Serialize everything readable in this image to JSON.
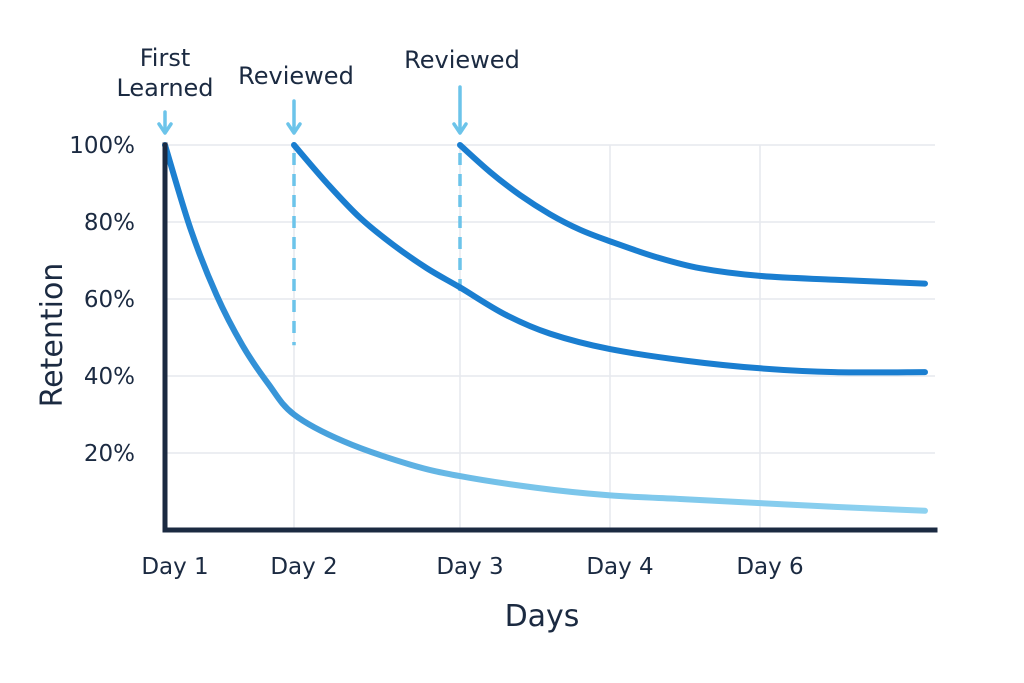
{
  "chart_data": {
    "type": "line",
    "title": "",
    "xlabel": "Days",
    "ylabel": "Retention",
    "x_tick_labels": [
      {
        "label": "Day 1",
        "x": 1
      },
      {
        "label": "Day 2",
        "x": 2
      },
      {
        "label": "Day 3",
        "x": 3
      },
      {
        "label": "Day 4",
        "x": 4
      },
      {
        "label": "Day 6",
        "x": 5
      }
    ],
    "y_ticks": [
      20,
      40,
      60,
      80,
      100
    ],
    "y_tick_labels": [
      "20%",
      "40%",
      "60%",
      "80%",
      "100%"
    ],
    "ylim": [
      0,
      100
    ],
    "xlim": [
      1,
      6.1
    ],
    "grid": true,
    "legend": "none",
    "series": [
      {
        "color": "#7fcbec",
        "points": [
          {
            "x": 1.0,
            "y": 100
          },
          {
            "x": 1.2,
            "y": 78
          },
          {
            "x": 1.4,
            "y": 61
          },
          {
            "x": 1.6,
            "y": 48
          },
          {
            "x": 1.8,
            "y": 38
          },
          {
            "x": 2.0,
            "y": 30
          },
          {
            "x": 2.3,
            "y": 23
          },
          {
            "x": 2.7,
            "y": 17
          },
          {
            "x": 3.0,
            "y": 14
          },
          {
            "x": 3.5,
            "y": 11
          },
          {
            "x": 4.0,
            "y": 9
          },
          {
            "x": 4.5,
            "y": 8
          },
          {
            "x": 5.0,
            "y": 7
          },
          {
            "x": 5.5,
            "y": 6
          },
          {
            "x": 6.1,
            "y": 5
          }
        ]
      },
      {
        "color": "#1a7ed0",
        "points": [
          {
            "x": 2.0,
            "y": 100
          },
          {
            "x": 2.2,
            "y": 90
          },
          {
            "x": 2.4,
            "y": 81
          },
          {
            "x": 2.6,
            "y": 74
          },
          {
            "x": 2.8,
            "y": 68
          },
          {
            "x": 3.0,
            "y": 63
          },
          {
            "x": 3.3,
            "y": 56
          },
          {
            "x": 3.6,
            "y": 51
          },
          {
            "x": 4.0,
            "y": 47
          },
          {
            "x": 4.5,
            "y": 44
          },
          {
            "x": 5.0,
            "y": 42
          },
          {
            "x": 5.5,
            "y": 41
          },
          {
            "x": 6.1,
            "y": 41
          }
        ]
      },
      {
        "color": "#1a7ed0",
        "points": [
          {
            "x": 3.0,
            "y": 100
          },
          {
            "x": 3.2,
            "y": 93
          },
          {
            "x": 3.4,
            "y": 87
          },
          {
            "x": 3.6,
            "y": 82
          },
          {
            "x": 3.8,
            "y": 78
          },
          {
            "x": 4.0,
            "y": 75
          },
          {
            "x": 4.3,
            "y": 71
          },
          {
            "x": 4.6,
            "y": 68
          },
          {
            "x": 5.0,
            "y": 66
          },
          {
            "x": 5.5,
            "y": 65
          },
          {
            "x": 6.1,
            "y": 64
          }
        ]
      }
    ],
    "annotations": [
      {
        "lines": [
          "First",
          "Learned"
        ],
        "x": 1,
        "dashed": false,
        "dash_to_y": 100
      },
      {
        "lines": [
          "Reviewed"
        ],
        "x": 2,
        "dashed": true,
        "dash_to_y": 48
      },
      {
        "lines": [
          "Reviewed"
        ],
        "x": 3,
        "dashed": true,
        "dash_to_y": 61
      }
    ],
    "colors": {
      "axis": "#1b2a41",
      "grid": "#e6e9ee",
      "marker": "#6cc4ea",
      "forgetting_curve": "#7fcbec",
      "review_curve": "#1a7ed0"
    }
  }
}
